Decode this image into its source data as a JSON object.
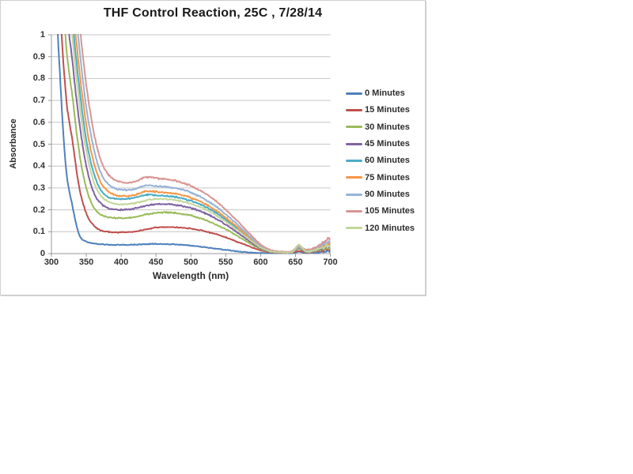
{
  "chart": {
    "frame_border_color": "#d0d0d0",
    "background": "#ffffff"
  },
  "chart_data": {
    "type": "line",
    "title": "THF Control Reaction, 25C , 7/28/14",
    "xlabel": "Wavelength (nm)",
    "ylabel": "Absorbance",
    "xlim": [
      300,
      700
    ],
    "ylim": [
      0,
      1
    ],
    "x_ticks": [
      300,
      350,
      400,
      450,
      500,
      550,
      600,
      650,
      700
    ],
    "y_ticks": [
      0,
      0.1,
      0.2,
      0.3,
      0.4,
      0.5,
      0.6,
      0.7,
      0.8,
      0.9,
      1
    ],
    "grid": "horizontal-major",
    "grid_color": "#c6c6c6",
    "axis_color": "#9a9a9a",
    "legend_position": "right",
    "x": [
      300,
      310,
      320,
      330,
      340,
      350,
      360,
      370,
      380,
      390,
      400,
      410,
      420,
      435,
      450,
      465,
      480,
      495,
      510,
      525,
      540,
      555,
      570,
      585,
      600,
      615,
      630,
      645,
      655,
      665,
      680,
      700
    ],
    "series": [
      {
        "name": "0 Minutes",
        "color": "#4F81BD",
        "values": [
          1.6,
          0.95,
          0.42,
          0.22,
          0.085,
          0.055,
          0.047,
          0.043,
          0.041,
          0.04,
          0.04,
          0.04,
          0.041,
          0.043,
          0.044,
          0.043,
          0.041,
          0.038,
          0.033,
          0.027,
          0.021,
          0.015,
          0.009,
          0.005,
          0.003,
          0.002,
          0.002,
          0.002,
          0.008,
          0.003,
          0.005,
          0.01
        ]
      },
      {
        "name": "15 Minutes",
        "color": "#C0504D",
        "values": [
          2.2,
          1.3,
          0.75,
          0.52,
          0.3,
          0.185,
          0.13,
          0.108,
          0.1,
          0.097,
          0.097,
          0.098,
          0.101,
          0.11,
          0.118,
          0.121,
          0.12,
          0.116,
          0.109,
          0.098,
          0.085,
          0.068,
          0.05,
          0.032,
          0.015,
          0.006,
          0.004,
          0.004,
          0.012,
          0.006,
          0.01,
          0.02
        ]
      },
      {
        "name": "30 Minutes",
        "color": "#9BBB59",
        "values": [
          2.6,
          1.6,
          1.0,
          0.72,
          0.46,
          0.3,
          0.215,
          0.18,
          0.168,
          0.163,
          0.162,
          0.163,
          0.167,
          0.178,
          0.186,
          0.188,
          0.184,
          0.177,
          0.165,
          0.148,
          0.127,
          0.102,
          0.074,
          0.046,
          0.021,
          0.008,
          0.005,
          0.005,
          0.022,
          0.007,
          0.013,
          0.026
        ]
      },
      {
        "name": "45 Minutes",
        "color": "#8064A2",
        "values": [
          2.9,
          1.85,
          1.2,
          0.88,
          0.6,
          0.4,
          0.285,
          0.232,
          0.21,
          0.202,
          0.2,
          0.201,
          0.206,
          0.218,
          0.225,
          0.226,
          0.221,
          0.212,
          0.198,
          0.178,
          0.152,
          0.122,
          0.089,
          0.055,
          0.025,
          0.009,
          0.006,
          0.006,
          0.024,
          0.009,
          0.016,
          0.032
        ]
      },
      {
        "name": "60 Minutes",
        "color": "#4BACC6",
        "values": [
          3.1,
          2.1,
          1.42,
          1.07,
          0.76,
          0.52,
          0.375,
          0.295,
          0.262,
          0.252,
          0.25,
          0.251,
          0.256,
          0.268,
          0.266,
          0.263,
          0.257,
          0.246,
          0.229,
          0.207,
          0.178,
          0.143,
          0.106,
          0.066,
          0.03,
          0.011,
          0.007,
          0.007,
          0.026,
          0.011,
          0.02,
          0.04
        ]
      },
      {
        "name": "75 Minutes",
        "color": "#F79646",
        "values": [
          3.2,
          2.2,
          1.52,
          1.16,
          0.84,
          0.59,
          0.425,
          0.33,
          0.288,
          0.27,
          0.264,
          0.264,
          0.269,
          0.284,
          0.282,
          0.279,
          0.272,
          0.261,
          0.243,
          0.219,
          0.188,
          0.151,
          0.112,
          0.07,
          0.033,
          0.012,
          0.007,
          0.008,
          0.028,
          0.012,
          0.022,
          0.045
        ]
      },
      {
        "name": "90 Minutes",
        "color": "#95B3D7",
        "values": [
          3.3,
          2.3,
          1.63,
          1.27,
          0.94,
          0.67,
          0.49,
          0.375,
          0.322,
          0.3,
          0.292,
          0.291,
          0.296,
          0.311,
          0.309,
          0.305,
          0.297,
          0.285,
          0.265,
          0.239,
          0.206,
          0.166,
          0.123,
          0.077,
          0.036,
          0.013,
          0.008,
          0.009,
          0.031,
          0.014,
          0.026,
          0.055
        ]
      },
      {
        "name": "105 Minutes",
        "color": "#D99694",
        "values": [
          3.4,
          2.45,
          1.77,
          1.4,
          1.06,
          0.77,
          0.565,
          0.435,
          0.368,
          0.338,
          0.327,
          0.325,
          0.33,
          0.349,
          0.345,
          0.34,
          0.331,
          0.316,
          0.294,
          0.265,
          0.229,
          0.185,
          0.138,
          0.088,
          0.042,
          0.016,
          0.009,
          0.011,
          0.036,
          0.017,
          0.031,
          0.068
        ]
      },
      {
        "name": "120 Minutes",
        "color": "#C3D69B",
        "values": [
          3.0,
          2.0,
          1.33,
          0.99,
          0.69,
          0.47,
          0.335,
          0.268,
          0.24,
          0.228,
          0.225,
          0.226,
          0.231,
          0.243,
          0.25,
          0.249,
          0.243,
          0.233,
          0.217,
          0.195,
          0.167,
          0.134,
          0.099,
          0.062,
          0.028,
          0.01,
          0.006,
          0.007,
          0.04,
          0.01,
          0.018,
          0.036
        ]
      }
    ]
  }
}
